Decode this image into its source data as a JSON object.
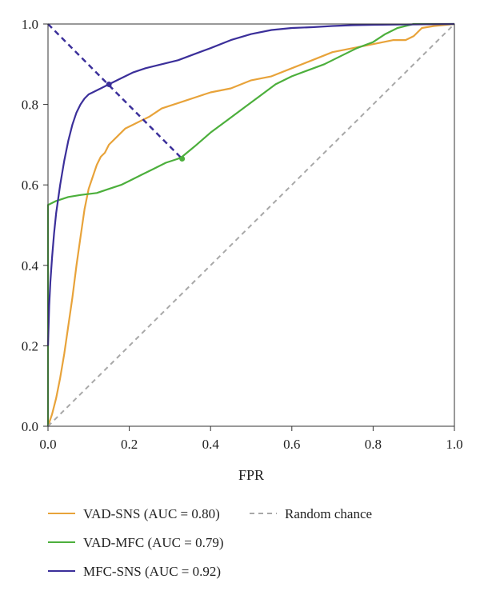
{
  "chart_data": {
    "type": "line",
    "title": "",
    "xlabel": "FPR",
    "ylabel": "",
    "xlim": [
      0.0,
      1.0
    ],
    "ylim": [
      0.0,
      1.0
    ],
    "grid": false,
    "legend_placement": "bottom",
    "x_ticks": [
      "0.0",
      "0.2",
      "0.4",
      "0.6",
      "0.8",
      "1.0"
    ],
    "y_ticks": [
      "0.0",
      "0.2",
      "0.4",
      "0.6",
      "0.8",
      "1.0"
    ],
    "colors": {
      "vad_sns": "#e8a33a",
      "vad_mfc": "#4caf3c",
      "mfc_sns": "#3b2f9a",
      "random": "#a8a8a8",
      "threshold": "#3b2f9a"
    },
    "series": [
      {
        "name": "VAD-SNS (AUC = 0.80)",
        "color": "#e8a33a",
        "x": [
          0.0,
          0.01,
          0.02,
          0.03,
          0.04,
          0.05,
          0.06,
          0.07,
          0.08,
          0.09,
          0.1,
          0.11,
          0.12,
          0.13,
          0.14,
          0.15,
          0.17,
          0.19,
          0.21,
          0.23,
          0.25,
          0.28,
          0.31,
          0.34,
          0.37,
          0.4,
          0.45,
          0.5,
          0.55,
          0.6,
          0.65,
          0.7,
          0.75,
          0.8,
          0.85,
          0.88,
          0.9,
          0.92,
          0.95,
          1.0
        ],
        "y": [
          0.0,
          0.03,
          0.07,
          0.12,
          0.18,
          0.25,
          0.32,
          0.4,
          0.47,
          0.54,
          0.59,
          0.62,
          0.65,
          0.67,
          0.68,
          0.7,
          0.72,
          0.74,
          0.75,
          0.76,
          0.77,
          0.79,
          0.8,
          0.81,
          0.82,
          0.83,
          0.84,
          0.86,
          0.87,
          0.89,
          0.91,
          0.93,
          0.94,
          0.95,
          0.96,
          0.96,
          0.97,
          0.99,
          0.995,
          1.0
        ]
      },
      {
        "name": "VAD-MFC (AUC = 0.79)",
        "color": "#4caf3c",
        "x": [
          0.0,
          0.0,
          0.02,
          0.05,
          0.08,
          0.12,
          0.15,
          0.18,
          0.2,
          0.23,
          0.26,
          0.29,
          0.32,
          0.33,
          0.36,
          0.4,
          0.44,
          0.48,
          0.52,
          0.56,
          0.6,
          0.64,
          0.68,
          0.72,
          0.76,
          0.8,
          0.83,
          0.86,
          0.9,
          1.0
        ],
        "y": [
          0.0,
          0.55,
          0.56,
          0.57,
          0.575,
          0.58,
          0.59,
          0.6,
          0.61,
          0.625,
          0.64,
          0.655,
          0.665,
          0.67,
          0.695,
          0.73,
          0.76,
          0.79,
          0.82,
          0.85,
          0.87,
          0.885,
          0.9,
          0.92,
          0.94,
          0.955,
          0.975,
          0.99,
          1.0,
          1.0
        ]
      },
      {
        "name": "MFC-SNS (AUC = 0.92)",
        "color": "#3b2f9a",
        "x": [
          0.0,
          0.003,
          0.006,
          0.01,
          0.015,
          0.02,
          0.03,
          0.04,
          0.05,
          0.06,
          0.07,
          0.08,
          0.09,
          0.1,
          0.11,
          0.13,
          0.15,
          0.18,
          0.21,
          0.24,
          0.28,
          0.32,
          0.36,
          0.4,
          0.45,
          0.5,
          0.55,
          0.6,
          0.65,
          0.7,
          0.75,
          0.8,
          0.9,
          1.0
        ],
        "y": [
          0.2,
          0.3,
          0.36,
          0.42,
          0.48,
          0.53,
          0.6,
          0.66,
          0.71,
          0.75,
          0.78,
          0.8,
          0.815,
          0.825,
          0.83,
          0.84,
          0.85,
          0.865,
          0.88,
          0.89,
          0.9,
          0.91,
          0.925,
          0.94,
          0.96,
          0.975,
          0.985,
          0.99,
          0.992,
          0.995,
          0.997,
          0.998,
          0.999,
          1.0
        ]
      },
      {
        "name": "Random chance",
        "color": "#a8a8a8",
        "dashed": true,
        "x": [
          0.0,
          1.0
        ],
        "y": [
          0.0,
          1.0
        ]
      }
    ],
    "threshold_line": {
      "x": [
        0.0,
        0.33
      ],
      "y": [
        1.0,
        0.665
      ],
      "markers": [
        {
          "x": 0.15,
          "y": 0.85,
          "color": "#3b2f9a"
        },
        {
          "x": 0.33,
          "y": 0.665,
          "color": "#4caf3c"
        }
      ]
    }
  }
}
